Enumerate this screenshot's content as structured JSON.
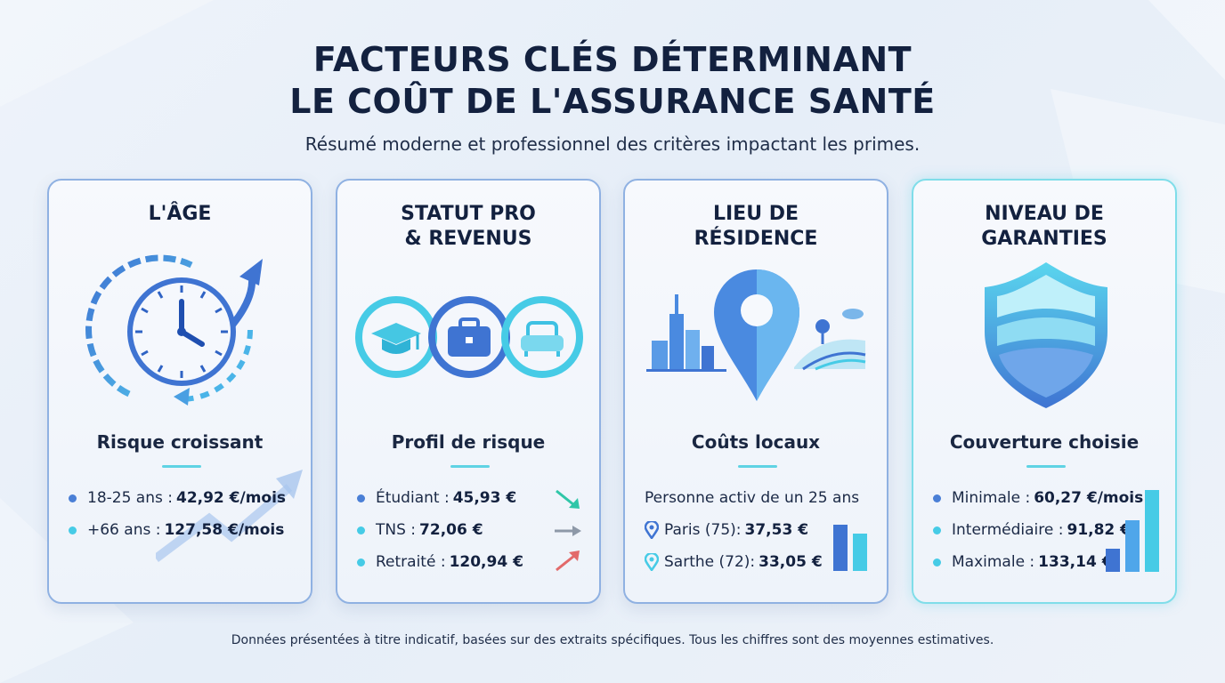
{
  "header": {
    "title_line1": "FACTEURS CLÉS DÉTERMINANT",
    "title_line2": "LE COÛT DE L'ASSURANCE SANTÉ",
    "subtitle": "Résumé moderne et professionnel des critères impactant les primes."
  },
  "cards": [
    {
      "title": "L'ÂGE",
      "icon": "clock-arrows-icon",
      "subtitle": "Risque croissant",
      "rows": [
        {
          "label": "18-25 ans :",
          "value": "42,92 €/mois"
        },
        {
          "label": "+66 ans :",
          "value": "127,58 €/mois"
        }
      ]
    },
    {
      "title": "STATUT PRO\n& REVENUS",
      "icon": "graduation-briefcase-armchair-icons",
      "subtitle": "Profil de risque",
      "rows": [
        {
          "label": "Étudiant :",
          "value": "45,93 €",
          "trend": "down"
        },
        {
          "label": "TNS :",
          "value": "72,06 €",
          "trend": "flat"
        },
        {
          "label": "Retraité :",
          "value": "120,94 €",
          "trend": "up"
        }
      ]
    },
    {
      "title": "LIEU DE\nRÉSIDENCE",
      "icon": "location-pin-city-countryside-icon",
      "subtitle": "Coûts locaux",
      "note": "Personne activ de un 25 ans",
      "rows": [
        {
          "label": "Paris (75):",
          "value": "37,53 €"
        },
        {
          "label": "Sarthe (72):",
          "value": "33,05 €"
        }
      ]
    },
    {
      "title": "NIVEAU DE\nGARANTIES",
      "icon": "shield-icon",
      "subtitle": "Couverture choisie",
      "rows": [
        {
          "label": "Minimale :",
          "value": "60,27 €/mois"
        },
        {
          "label": "Intermédiaire :",
          "value": "91,82 €"
        },
        {
          "label": "Maximale :",
          "value": "133,14 €"
        }
      ]
    }
  ],
  "footer": "Données présentées à titre indicatif, basées sur des extraits spécifiques. Tous les chiffres sont des moyennes estimatives.",
  "colors": {
    "accent_blue": "#4a7fd6",
    "accent_cyan": "#46cbe6",
    "trend_down": "#2fc6a8",
    "trend_flat": "#8e99a8",
    "trend_up": "#e26a6a"
  }
}
